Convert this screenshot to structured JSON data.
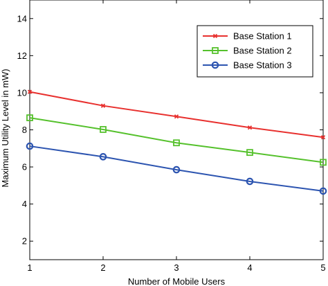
{
  "chart_data": {
    "type": "line",
    "xlabel": "Number of Mobile Users",
    "ylabel": "Maximum Utility Level in mW)",
    "xlim": [
      1,
      5
    ],
    "ylim": [
      1,
      15
    ],
    "x_ticks": [
      1,
      2,
      3,
      4,
      5
    ],
    "y_ticks": [
      2,
      4,
      6,
      8,
      10,
      12,
      14
    ],
    "grid": false,
    "legend_position": "top-right",
    "x": [
      1,
      2,
      3,
      4,
      5
    ],
    "series": [
      {
        "name": "Base Station 1",
        "color": "#e8302e",
        "marker": "x-dot",
        "values": [
          10.05,
          9.3,
          8.72,
          8.12,
          7.6
        ]
      },
      {
        "name": "Base Station 2",
        "color": "#55c12c",
        "marker": "square",
        "values": [
          8.65,
          8.02,
          7.3,
          6.78,
          6.25
        ]
      },
      {
        "name": "Base Station 3",
        "color": "#2c54b0",
        "marker": "circle",
        "values": [
          7.12,
          6.55,
          5.85,
          5.22,
          4.7
        ]
      }
    ]
  }
}
